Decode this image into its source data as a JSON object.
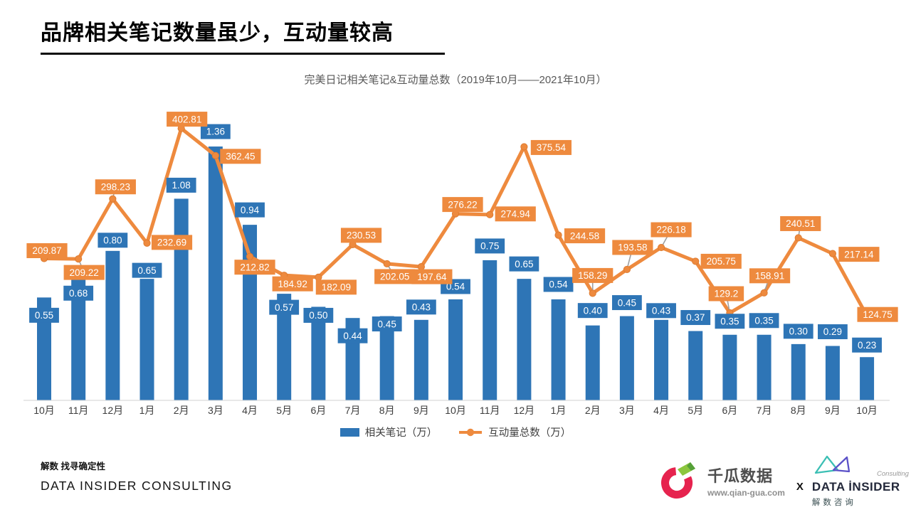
{
  "header": {
    "title": "品牌相关笔记数量虽少，互动量较高"
  },
  "chart": {
    "title": "完美日记相关笔记&互动量总数（2019年10月——2021年10月）",
    "legend": {
      "bars": "相关笔记（万）",
      "line": "互动量总数（万）"
    }
  },
  "chart_data": {
    "type": "bar",
    "subtype": "bar+line combo, dual implicit axes, value labels on points",
    "title": "完美日记相关笔记&互动量总数（2019年10月——2021年10月）",
    "xlabel": "",
    "ylabel": "",
    "grid": false,
    "legend_position": "bottom",
    "categories": [
      "10月",
      "11月",
      "12月",
      "1月",
      "2月",
      "3月",
      "4月",
      "5月",
      "6月",
      "7月",
      "8月",
      "9月",
      "10月",
      "11月",
      "12月",
      "1月",
      "2月",
      "3月",
      "4月",
      "5月",
      "6月",
      "7月",
      "8月",
      "9月",
      "10月"
    ],
    "ylim_bar": [
      0,
      1.57
    ],
    "ylim_line": [
      0,
      434
    ],
    "series": [
      {
        "name": "相关笔记（万）",
        "type": "bar",
        "color": "#2E75B6",
        "values": [
          0.55,
          0.68,
          0.8,
          0.65,
          1.08,
          1.36,
          0.94,
          0.57,
          0.5,
          0.44,
          0.45,
          0.43,
          0.54,
          0.75,
          0.65,
          0.54,
          0.4,
          0.45,
          0.43,
          0.37,
          0.35,
          0.35,
          0.3,
          0.29,
          0.23
        ],
        "labels": [
          "0.55",
          "0.68",
          "0.80",
          "0.65",
          "1.08",
          "1.36",
          "0.94",
          "0.57",
          "0.50",
          "0.44",
          "0.45",
          "0.43",
          "0.54",
          "0.75",
          "0.65",
          "0.54",
          "0.40",
          "0.45",
          "0.43",
          "0.37",
          "0.35",
          "0.35",
          "0.30",
          "0.29",
          "0.23"
        ]
      },
      {
        "name": "互动量总数（万）",
        "type": "line",
        "color": "#EE8A3E",
        "values": [
          209.87,
          209.22,
          298.23,
          232.69,
          402.81,
          362.45,
          212.82,
          184.92,
          182.09,
          230.53,
          202.05,
          197.64,
          276.22,
          274.94,
          375.54,
          244.58,
          158.29,
          193.58,
          226.18,
          205.75,
          129.2,
          158.91,
          240.51,
          217.14,
          124.75
        ],
        "labels": [
          "209.87",
          "209.22",
          "298.23",
          "232.69",
          "402.81",
          "362.45",
          "212.82",
          "184.92",
          "182.09",
          "230.53",
          "202.05",
          "197.64",
          "276.22",
          "274.94",
          "375.54",
          "244.58",
          "158.29",
          "193.58",
          "226.18",
          "205.75",
          "129.2",
          "158.91",
          "240.51",
          "217.14",
          "124.75"
        ]
      }
    ]
  },
  "colors": {
    "bar": "#2E75B6",
    "line": "#EE8A3E",
    "leader": "#9E9E9E",
    "axis_line": "#D9D9D9",
    "x_label": "#3d3d3d"
  },
  "footer": {
    "tagline": "解数 找寻确定性",
    "company": "DATA INSIDER CONSULTING",
    "partners": {
      "qiangua_name": "千瓜数据",
      "qiangua_site": "www.qian-gua.com",
      "separator": "X",
      "di_consulting": "Consulting",
      "di_name": "DATA İNSIDER",
      "di_cn": "解数咨询",
      "qiangua_red": "#E6234E",
      "qiangua_green": "#8CC63E",
      "qiangua_green_dark": "#55A038",
      "di_teal": "#3BBFB4",
      "di_purple": "#5B51C8"
    }
  }
}
